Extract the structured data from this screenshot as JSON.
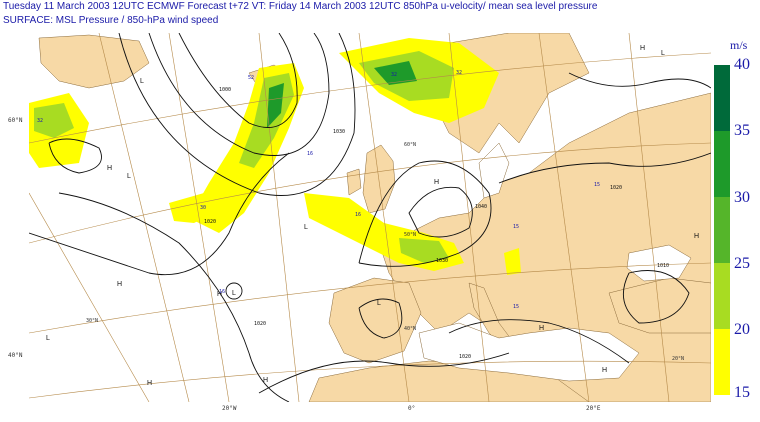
{
  "header": {
    "line1": "Tuesday 11 March 2003 12UTC ECMWF  Forecast t+72 VT: Friday 14 March 2003 12UTC 850hPa u-velocity/  mean sea level pressure",
    "line2": "SURFACE: MSL Pressure   /  850-hPa wind speed"
  },
  "legend": {
    "unit": "m/s",
    "ticks": [
      "40",
      "35",
      "30",
      "25",
      "20",
      "15"
    ],
    "bins": [
      {
        "from": 35,
        "to": 40,
        "color": "#006a3a"
      },
      {
        "from": 30,
        "to": 35,
        "color": "#1e9a2a"
      },
      {
        "from": 25,
        "to": 30,
        "color": "#55b52a"
      },
      {
        "from": 20,
        "to": 25,
        "color": "#a8dc22"
      },
      {
        "from": 15,
        "to": 20,
        "color": "#ffff00"
      }
    ]
  },
  "colors": {
    "land": "#f7d9a6",
    "sea": "#ffffff",
    "isobar": "#111111",
    "graticule": "#b58a4a",
    "label": "#1a1aa8"
  },
  "axis_labels": {
    "lat_60w": "60°N",
    "lat_40w": "40°N",
    "lon_20w": "20°W",
    "lon_0": "0°",
    "lon_20e": "20°E",
    "lat_60n_inner": "60°N",
    "lat_50n_inner": "50°N",
    "lat_40n_inner": "40°N",
    "lat_30n_inner": "30°N",
    "lat_20n_inner": "20°N",
    "lat_40n_edge": "40°N",
    "lat_60n_edge": "60°N"
  },
  "pressure_centres": {
    "h_atlantic_west": "H",
    "l_atlantic_west": "L",
    "h_atlantic_mid": "H",
    "l_iceland": "L",
    "h_scandinavia": "H",
    "l_iberia": "L",
    "h_azores": "H",
    "l_azores": "L",
    "l_south_west": "L",
    "h_south": "H",
    "h_far_south": "H",
    "h_mediterranean": "H",
    "h_east": "H",
    "l_north_east": "L",
    "h_north": "H",
    "l_north": "L",
    "h_corner": "H"
  },
  "isobar_labels": [
    "1000",
    "1020",
    "1030",
    "1040",
    "1020",
    "1010",
    "1030",
    "1020",
    "1020"
  ],
  "wind_maxima": [
    "32",
    "32",
    "52",
    "16",
    "30",
    "16",
    "16",
    "32",
    "15",
    "15",
    "15"
  ]
}
